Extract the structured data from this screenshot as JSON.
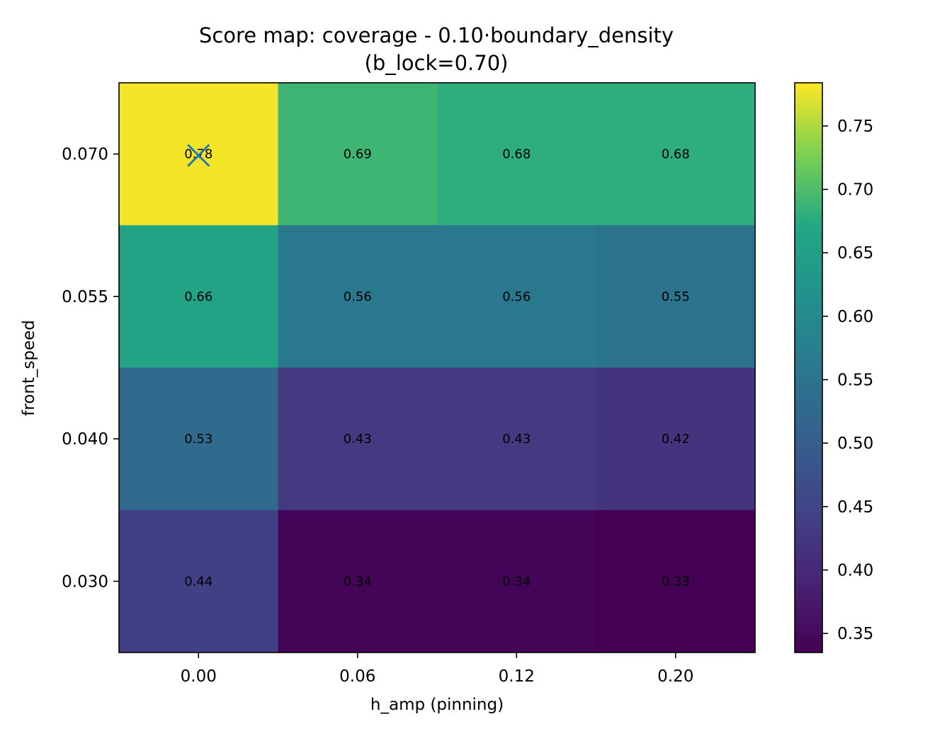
{
  "chart_data": {
    "type": "heatmap",
    "title": "Score map: coverage - 0.10·boundary_density",
    "subtitle": "(b_lock=0.70)",
    "xlabel": "h_amp (pinning)",
    "ylabel": "front_speed",
    "x": [
      "0.00",
      "0.06",
      "0.12",
      "0.20"
    ],
    "y": [
      "0.070",
      "0.055",
      "0.040",
      "0.030"
    ],
    "values": [
      [
        0.78,
        0.69,
        0.68,
        0.68
      ],
      [
        0.66,
        0.56,
        0.56,
        0.55
      ],
      [
        0.53,
        0.43,
        0.43,
        0.42
      ],
      [
        0.44,
        0.34,
        0.34,
        0.33
      ]
    ],
    "labels": [
      [
        "0.78",
        "0.69",
        "0.68",
        "0.68"
      ],
      [
        "0.66",
        "0.56",
        "0.56",
        "0.55"
      ],
      [
        "0.53",
        "0.43",
        "0.43",
        "0.42"
      ],
      [
        "0.44",
        "0.34",
        "0.34",
        "0.33"
      ]
    ],
    "colormap": "viridis",
    "vmin": 0.335,
    "vmax": 0.784,
    "colorbar_ticks": [
      "0.35",
      "0.40",
      "0.45",
      "0.50",
      "0.55",
      "0.60",
      "0.65",
      "0.70",
      "0.75"
    ],
    "best_marker": {
      "row": 0,
      "col": 0,
      "symbol": "x",
      "color": "#1f77b4"
    },
    "grid": false
  }
}
